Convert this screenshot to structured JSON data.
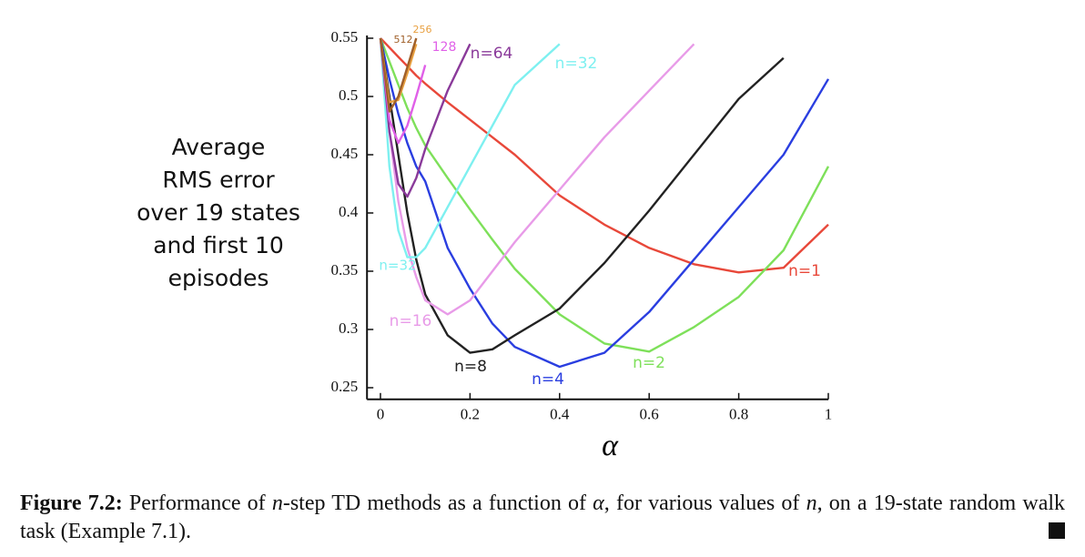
{
  "chart_data": {
    "type": "line",
    "ylabel": [
      "Average",
      "RMS error",
      "over 19 states",
      "and first 10",
      "episodes"
    ],
    "xlabel": "α",
    "x": [
      0,
      0.02,
      0.04,
      0.06,
      0.08,
      0.1,
      0.15,
      0.2,
      0.25,
      0.3,
      0.4,
      0.5,
      0.6,
      0.7,
      0.8,
      0.9,
      1
    ],
    "series": [
      {
        "name": "n=1",
        "color": "#e8483a",
        "values": [
          0.55,
          0.542,
          0.534,
          0.526,
          0.518,
          0.511,
          0.495,
          0.48,
          0.465,
          0.45,
          0.415,
          0.39,
          0.37,
          0.356,
          0.349,
          0.353,
          0.39
        ]
      },
      {
        "name": "n=2",
        "color": "#7ee05a",
        "values": [
          0.55,
          0.53,
          0.51,
          0.49,
          0.473,
          0.458,
          0.43,
          0.403,
          0.377,
          0.352,
          0.313,
          0.288,
          0.281,
          0.302,
          0.328,
          0.368,
          0.44
        ]
      },
      {
        "name": "n=4",
        "color": "#2a3ee0",
        "values": [
          0.55,
          0.515,
          0.485,
          0.46,
          0.44,
          0.427,
          0.37,
          0.335,
          0.305,
          0.285,
          0.268,
          0.28,
          0.315,
          0.36,
          0.405,
          0.45,
          0.515
        ]
      },
      {
        "name": "n=8",
        "color": "#222222",
        "values": [
          0.55,
          0.5,
          0.45,
          0.4,
          0.36,
          0.33,
          0.295,
          0.28,
          0.283,
          0.295,
          0.318,
          0.357,
          0.402,
          0.45,
          0.498,
          0.533,
          null
        ]
      },
      {
        "name": "n=16",
        "color": "#e89be8",
        "values": [
          0.55,
          0.47,
          0.41,
          0.37,
          0.345,
          0.325,
          0.313,
          0.325,
          0.35,
          0.375,
          0.42,
          0.465,
          0.505,
          0.545,
          null,
          null,
          null
        ]
      },
      {
        "name": "n=32",
        "color": "#7ef0f0",
        "values": [
          0.55,
          0.44,
          0.385,
          0.362,
          0.362,
          0.37,
          0.405,
          0.44,
          0.475,
          0.51,
          0.545,
          null,
          null,
          null,
          null,
          null,
          null
        ]
      },
      {
        "name": "n=64",
        "color": "#8a3a9a",
        "values": [
          0.55,
          0.47,
          0.425,
          0.414,
          0.43,
          0.455,
          0.505,
          0.545,
          null,
          null,
          null,
          null,
          null,
          null,
          null,
          null,
          null
        ]
      },
      {
        "name": "128",
        "color": "#e060e8",
        "values": [
          0.55,
          0.48,
          0.46,
          0.475,
          0.5,
          0.527,
          null,
          null,
          null,
          null,
          null,
          null,
          null,
          null,
          null,
          null,
          null
        ]
      },
      {
        "name": "256",
        "color": "#e8a040",
        "values": [
          0.55,
          0.495,
          0.497,
          0.52,
          0.545,
          null,
          null,
          null,
          null,
          null,
          null,
          null,
          null,
          null,
          null,
          null,
          null
        ]
      },
      {
        "name": "512",
        "color": "#a0602a",
        "values": [
          0.55,
          0.487,
          0.5,
          0.525,
          0.55,
          null,
          null,
          null,
          null,
          null,
          null,
          null,
          null,
          null,
          null,
          null,
          null
        ]
      }
    ],
    "xlim": [
      -0.03,
      1
    ],
    "ylim": [
      0.24,
      0.55
    ],
    "xticks": [
      0,
      0.2,
      0.4,
      0.6,
      0.8,
      1
    ],
    "yticks": [
      0.25,
      0.3,
      0.35,
      0.4,
      0.45,
      0.5,
      0.55
    ],
    "grid": false
  },
  "caption": {
    "label": "Figure 7.2:",
    "parts": [
      "Performance of ",
      "n",
      "-step TD methods as a function of ",
      "α",
      ", for various values of ",
      "n",
      ", on a 19-state random walk task (Example 7.1)."
    ]
  }
}
